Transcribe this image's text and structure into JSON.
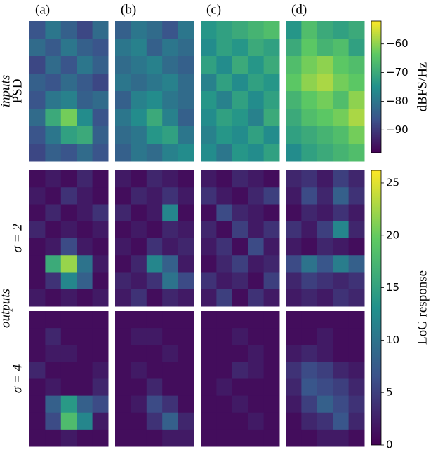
{
  "chart_data": {
    "type": "heatmap",
    "columns": [
      "(a)",
      "(b)",
      "(c)",
      "(d)"
    ],
    "group_labels": [
      "inputs",
      "outputs"
    ],
    "colorbars": [
      {
        "label": "dBFS/Hz",
        "lim": [
          -98,
          -52
        ],
        "ticks": [
          {
            "value": -60,
            "label": "−60"
          },
          {
            "value": -70,
            "label": "−70"
          },
          {
            "value": -80,
            "label": "−80"
          },
          {
            "value": -90,
            "label": "−90"
          }
        ]
      },
      {
        "label": "LoG response",
        "lim": [
          0,
          26.2
        ],
        "ticks": [
          0,
          5,
          10,
          15,
          20,
          25
        ]
      }
    ],
    "rows": [
      {
        "label": "PSD",
        "colorbar": 0,
        "panels": [
          [
            [
              -86,
              -80,
              -84,
              -88,
              -82
            ],
            [
              -82,
              -85,
              -80,
              -84,
              -86
            ],
            [
              -88,
              -82,
              -86,
              -80,
              -84
            ],
            [
              -84,
              -86,
              -82,
              -85,
              -88
            ],
            [
              -86,
              -80,
              -78,
              -84,
              -82
            ],
            [
              -82,
              -70,
              -62,
              -76,
              -86
            ],
            [
              -86,
              -80,
              -72,
              -70,
              -84
            ],
            [
              -88,
              -84,
              -86,
              -82,
              -86
            ]
          ],
          [
            [
              -84,
              -80,
              -82,
              -86,
              -80
            ],
            [
              -80,
              -78,
              -84,
              -80,
              -82
            ],
            [
              -82,
              -80,
              -78,
              -82,
              -84
            ],
            [
              -80,
              -82,
              -80,
              -78,
              -82
            ],
            [
              -84,
              -78,
              -76,
              -80,
              -82
            ],
            [
              -80,
              -76,
              -70,
              -78,
              -84
            ],
            [
              -82,
              -80,
              -74,
              -72,
              -80
            ],
            [
              -84,
              -80,
              -82,
              -78,
              -76
            ]
          ],
          [
            [
              -74,
              -72,
              -70,
              -68,
              -66
            ],
            [
              -76,
              -72,
              -74,
              -70,
              -72
            ],
            [
              -72,
              -76,
              -70,
              -74,
              -70
            ],
            [
              -78,
              -72,
              -76,
              -72,
              -74
            ],
            [
              -74,
              -78,
              -72,
              -76,
              -72
            ],
            [
              -76,
              -72,
              -74,
              -78,
              -70
            ],
            [
              -78,
              -74,
              -76,
              -72,
              -76
            ],
            [
              -76,
              -80,
              -74,
              -76,
              -72
            ]
          ],
          [
            [
              -74,
              -66,
              -70,
              -72,
              -70
            ],
            [
              -70,
              -64,
              -68,
              -66,
              -72
            ],
            [
              -66,
              -62,
              -60,
              -64,
              -66
            ],
            [
              -64,
              -60,
              -58,
              -62,
              -64
            ],
            [
              -68,
              -64,
              -62,
              -66,
              -60
            ],
            [
              -70,
              -66,
              -64,
              -62,
              -58
            ],
            [
              -72,
              -70,
              -68,
              -66,
              -62
            ],
            [
              -76,
              -72,
              -70,
              -68,
              -66
            ]
          ]
        ]
      },
      {
        "label": "σ = 2",
        "colorbar": 1,
        "panels": [
          [
            [
              1,
              2,
              1,
              3,
              1
            ],
            [
              2,
              1,
              4,
              2,
              1
            ],
            [
              1,
              3,
              1,
              2,
              4
            ],
            [
              3,
              1,
              2,
              1,
              2
            ],
            [
              1,
              2,
              6,
              2,
              1
            ],
            [
              1,
              16,
              22,
              10,
              2
            ],
            [
              1,
              4,
              12,
              8,
              1
            ],
            [
              2,
              1,
              2,
              1,
              2
            ]
          ],
          [
            [
              2,
              1,
              3,
              2,
              1
            ],
            [
              1,
              3,
              2,
              4,
              2
            ],
            [
              3,
              1,
              2,
              12,
              1
            ],
            [
              1,
              2,
              1,
              3,
              2
            ],
            [
              2,
              1,
              4,
              2,
              3
            ],
            [
              1,
              3,
              12,
              8,
              2
            ],
            [
              3,
              2,
              4,
              10,
              6
            ],
            [
              2,
              4,
              1,
              3,
              2
            ]
          ],
          [
            [
              2,
              1,
              3,
              2,
              1
            ],
            [
              4,
              2,
              1,
              3,
              5
            ],
            [
              1,
              6,
              3,
              2,
              1
            ],
            [
              3,
              1,
              5,
              2,
              4
            ],
            [
              2,
              4,
              1,
              6,
              2
            ],
            [
              1,
              3,
              5,
              2,
              3
            ],
            [
              4,
              2,
              3,
              1,
              5
            ],
            [
              2,
              5,
              1,
              4,
              2
            ]
          ],
          [
            [
              3,
              4,
              2,
              5,
              3
            ],
            [
              2,
              6,
              3,
              8,
              4
            ],
            [
              1,
              3,
              2,
              4,
              2
            ],
            [
              4,
              2,
              5,
              12,
              3
            ],
            [
              2,
              1,
              3,
              2,
              1
            ],
            [
              6,
              10,
              7,
              11,
              8
            ],
            [
              3,
              5,
              4,
              3,
              4
            ],
            [
              2,
              3,
              2,
              4,
              3
            ]
          ]
        ]
      },
      {
        "label": "σ = 4",
        "colorbar": 1,
        "panels": [
          [
            [
              1,
              1,
              1,
              1,
              1
            ],
            [
              1,
              3,
              1,
              1,
              1
            ],
            [
              1,
              2,
              2,
              1,
              1
            ],
            [
              3,
              1,
              1,
              1,
              2
            ],
            [
              1,
              2,
              1,
              1,
              3
            ],
            [
              1,
              8,
              14,
              8,
              6
            ],
            [
              1,
              6,
              18,
              12,
              2
            ],
            [
              1,
              1,
              2,
              1,
              1
            ]
          ],
          [
            [
              1,
              1,
              1,
              1,
              1
            ],
            [
              1,
              2,
              2,
              1,
              1
            ],
            [
              1,
              1,
              1,
              2,
              1
            ],
            [
              1,
              2,
              1,
              1,
              1
            ],
            [
              1,
              1,
              3,
              1,
              1
            ],
            [
              1,
              2,
              6,
              4,
              1
            ],
            [
              1,
              1,
              4,
              8,
              3
            ],
            [
              1,
              1,
              1,
              2,
              2
            ]
          ],
          [
            [
              1,
              1,
              1,
              1,
              1
            ],
            [
              1,
              1,
              2,
              1,
              1
            ],
            [
              1,
              1,
              1,
              2,
              1
            ],
            [
              1,
              1,
              3,
              2,
              1
            ],
            [
              1,
              2,
              1,
              1,
              1
            ],
            [
              1,
              1,
              2,
              1,
              1
            ],
            [
              1,
              1,
              1,
              2,
              1
            ],
            [
              1,
              1,
              1,
              1,
              1
            ]
          ],
          [
            [
              1,
              1,
              1,
              1,
              1
            ],
            [
              1,
              1,
              2,
              1,
              1
            ],
            [
              2,
              3,
              2,
              1,
              1
            ],
            [
              4,
              6,
              5,
              3,
              2
            ],
            [
              3,
              7,
              6,
              5,
              3
            ],
            [
              2,
              5,
              8,
              6,
              4
            ],
            [
              1,
              3,
              4,
              7,
              3
            ],
            [
              1,
              1,
              2,
              2,
              1
            ]
          ]
        ]
      }
    ]
  }
}
